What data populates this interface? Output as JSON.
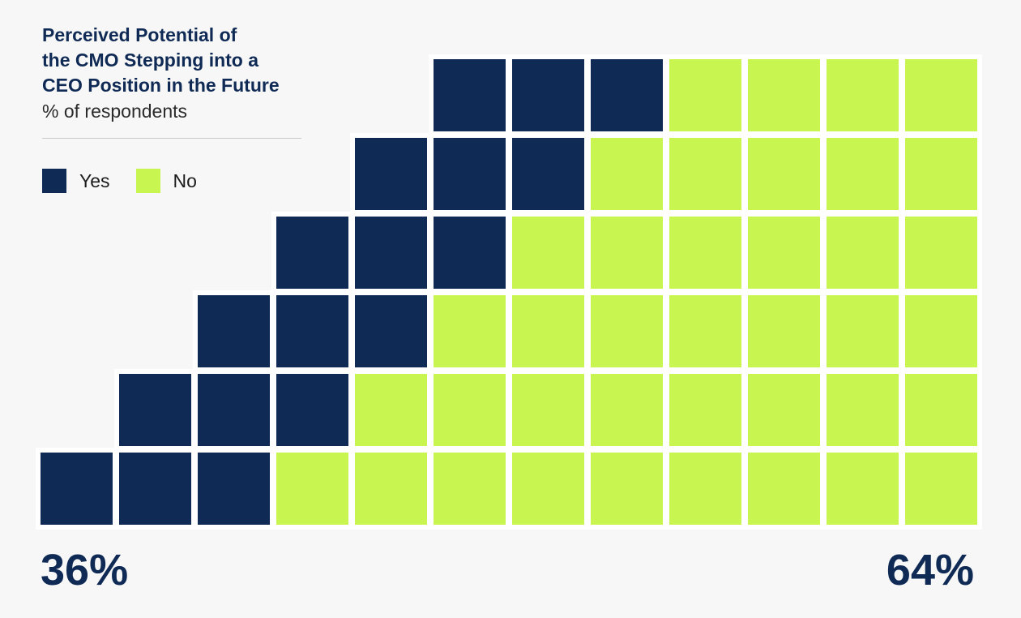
{
  "chart_data": {
    "type": "waffle",
    "title": "Perceived Potential of\nthe CMO Stepping into a\nCEO Position in the Future",
    "subtitle": "% of respondents",
    "series": [
      {
        "name": "Yes",
        "value": 36,
        "color": "#0f2a55",
        "label": "36%"
      },
      {
        "name": "No",
        "value": 64,
        "color": "#c8f550",
        "label": "64%"
      }
    ],
    "grid": {
      "columns": 12,
      "rows": [
        {
          "empty": 5,
          "yes": 3,
          "no": 4
        },
        {
          "empty": 4,
          "yes": 3,
          "no": 5
        },
        {
          "empty": 3,
          "yes": 3,
          "no": 6
        },
        {
          "empty": 2,
          "yes": 3,
          "no": 7
        },
        {
          "empty": 1,
          "yes": 3,
          "no": 8
        },
        {
          "empty": 0,
          "yes": 3,
          "no": 9
        }
      ]
    }
  }
}
